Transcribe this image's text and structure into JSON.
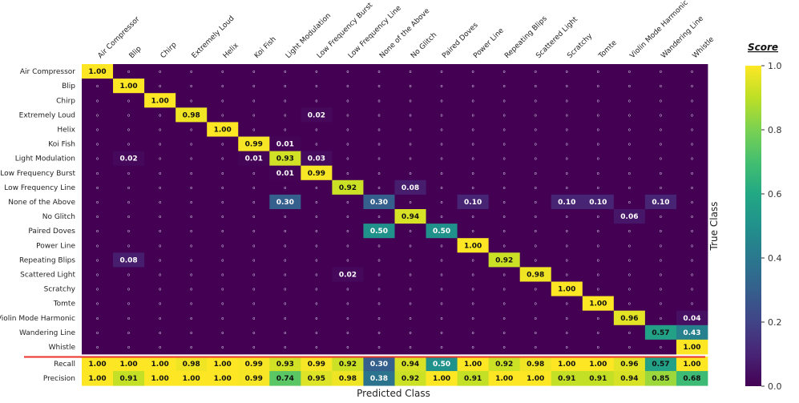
{
  "chart_data": {
    "type": "heatmap",
    "xlabel": "Predicted Class",
    "ylabel": "True Class",
    "colorbar": {
      "title": "Score",
      "ticks": [
        "0.0",
        "0.2",
        "0.4",
        "0.6",
        "0.8",
        "1.0"
      ],
      "range": [
        0,
        1
      ],
      "colormap": "viridis"
    },
    "zero_marker": "o",
    "columns": [
      "Air Compressor",
      "Blip",
      "Chirp",
      "Extremely Loud",
      "Helix",
      "Koi Fish",
      "Light Modulation",
      "Low Frequency Burst",
      "Low Frequency Line",
      "None of the Above",
      "No Glitch",
      "Paired Doves",
      "Power Line",
      "Repeating Blips",
      "Scattered Light",
      "Scratchy",
      "Tomte",
      "Violin Mode Harmonic",
      "Wandering Line",
      "Whistle"
    ],
    "rows": [
      "Air Compressor",
      "Blip",
      "Chirp",
      "Extremely Loud",
      "Helix",
      "Koi Fish",
      "Light Modulation",
      "Low Frequency Burst",
      "Low Frequency Line",
      "None of the Above",
      "No Glitch",
      "Paired Doves",
      "Power Line",
      "Repeating Blips",
      "Scattered Light",
      "Scratchy",
      "Tomte",
      "Violin Mode Harmonic",
      "Wandering Line",
      "Whistle"
    ],
    "nonzero_cells": [
      {
        "row": 0,
        "col": 0,
        "value": 1.0
      },
      {
        "row": 1,
        "col": 1,
        "value": 1.0
      },
      {
        "row": 2,
        "col": 2,
        "value": 1.0
      },
      {
        "row": 3,
        "col": 3,
        "value": 0.98
      },
      {
        "row": 3,
        "col": 7,
        "value": 0.02
      },
      {
        "row": 4,
        "col": 4,
        "value": 1.0
      },
      {
        "row": 5,
        "col": 5,
        "value": 0.99
      },
      {
        "row": 5,
        "col": 6,
        "value": 0.01
      },
      {
        "row": 6,
        "col": 1,
        "value": 0.02
      },
      {
        "row": 6,
        "col": 5,
        "value": 0.01
      },
      {
        "row": 6,
        "col": 6,
        "value": 0.93
      },
      {
        "row": 6,
        "col": 7,
        "value": 0.03
      },
      {
        "row": 7,
        "col": 6,
        "value": 0.01
      },
      {
        "row": 7,
        "col": 7,
        "value": 0.99
      },
      {
        "row": 8,
        "col": 8,
        "value": 0.92
      },
      {
        "row": 8,
        "col": 10,
        "value": 0.08
      },
      {
        "row": 9,
        "col": 6,
        "value": 0.3
      },
      {
        "row": 9,
        "col": 9,
        "value": 0.3
      },
      {
        "row": 9,
        "col": 12,
        "value": 0.1
      },
      {
        "row": 9,
        "col": 15,
        "value": 0.1
      },
      {
        "row": 9,
        "col": 16,
        "value": 0.1
      },
      {
        "row": 9,
        "col": 18,
        "value": 0.1
      },
      {
        "row": 10,
        "col": 10,
        "value": 0.94
      },
      {
        "row": 10,
        "col": 17,
        "value": 0.06
      },
      {
        "row": 11,
        "col": 9,
        "value": 0.5
      },
      {
        "row": 11,
        "col": 11,
        "value": 0.5
      },
      {
        "row": 12,
        "col": 12,
        "value": 1.0
      },
      {
        "row": 13,
        "col": 1,
        "value": 0.08
      },
      {
        "row": 13,
        "col": 13,
        "value": 0.92
      },
      {
        "row": 14,
        "col": 8,
        "value": 0.02
      },
      {
        "row": 14,
        "col": 14,
        "value": 0.98
      },
      {
        "row": 15,
        "col": 15,
        "value": 1.0
      },
      {
        "row": 16,
        "col": 16,
        "value": 1.0
      },
      {
        "row": 17,
        "col": 17,
        "value": 0.96
      },
      {
        "row": 17,
        "col": 19,
        "value": 0.04
      },
      {
        "row": 18,
        "col": 18,
        "value": 0.57
      },
      {
        "row": 18,
        "col": 19,
        "value": 0.43
      },
      {
        "row": 19,
        "col": 19,
        "value": 1.0
      }
    ],
    "summary_rows": [
      {
        "label": "Recall",
        "values": [
          1.0,
          1.0,
          1.0,
          0.98,
          1.0,
          0.99,
          0.93,
          0.99,
          0.92,
          0.3,
          0.94,
          0.5,
          1.0,
          0.92,
          0.98,
          1.0,
          1.0,
          0.96,
          0.57,
          1.0
        ]
      },
      {
        "label": "Precision",
        "values": [
          1.0,
          0.91,
          1.0,
          1.0,
          1.0,
          0.99,
          0.74,
          0.95,
          0.98,
          0.38,
          0.92,
          1.0,
          0.91,
          1.0,
          1.0,
          0.91,
          0.91,
          0.94,
          0.85,
          0.68
        ]
      }
    ]
  }
}
